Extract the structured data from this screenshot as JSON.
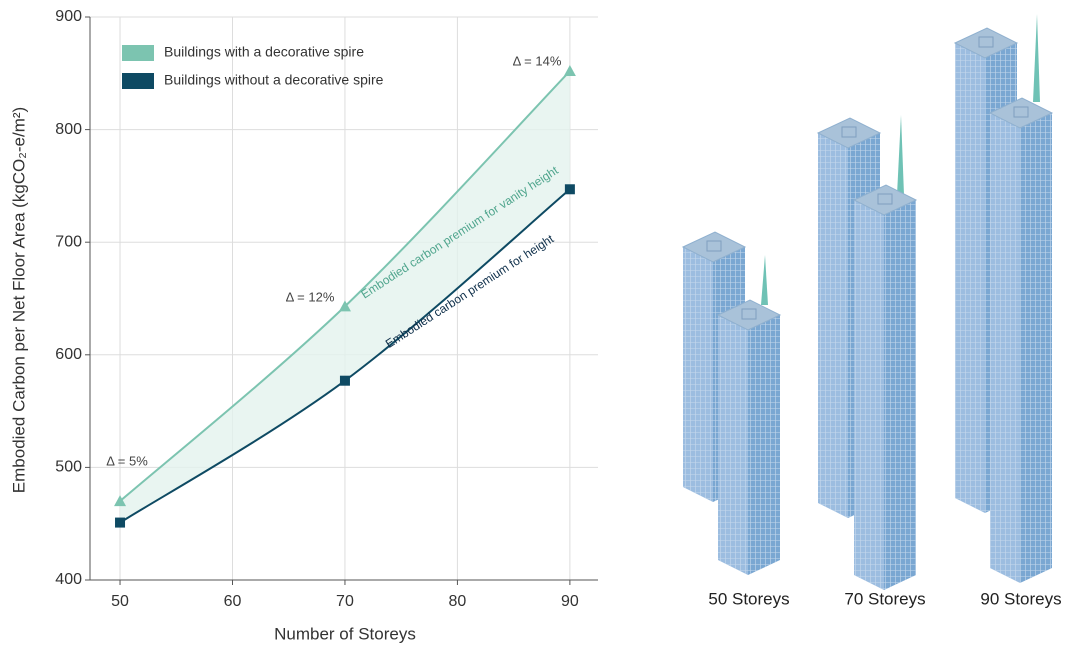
{
  "chart_data": {
    "type": "line",
    "x_label": "Number of Storeys",
    "y_label": "Embodied Carbon per Net Floor Area (kgCO₂-e/m²)",
    "x": [
      50,
      70,
      90
    ],
    "series": [
      {
        "name": "Buildings with a decorative spire",
        "color": "#7cc4b0",
        "marker": "triangle",
        "values": [
          470,
          643,
          852
        ]
      },
      {
        "name": "Buildings without a decorative spire",
        "color": "#0e4a63",
        "marker": "square",
        "values": [
          451,
          577,
          747
        ]
      }
    ],
    "xlim": [
      47.33,
      92.5
    ],
    "ylim": [
      400,
      900
    ],
    "xticks": [
      50,
      60,
      70,
      80,
      90
    ],
    "yticks": [
      400,
      500,
      600,
      700,
      800,
      900
    ],
    "grid": true,
    "legend": "upper-left",
    "fill_between": "#e3f3ee",
    "annotations": [
      "Δ = 5%",
      "Δ = 12%",
      "Δ = 14%",
      "Embodied carbon premium for vanity height",
      "Embodied carbon premium for height"
    ]
  },
  "illustration": {
    "labels": [
      "50 Storeys",
      "70 Storeys",
      "90 Storeys"
    ]
  }
}
